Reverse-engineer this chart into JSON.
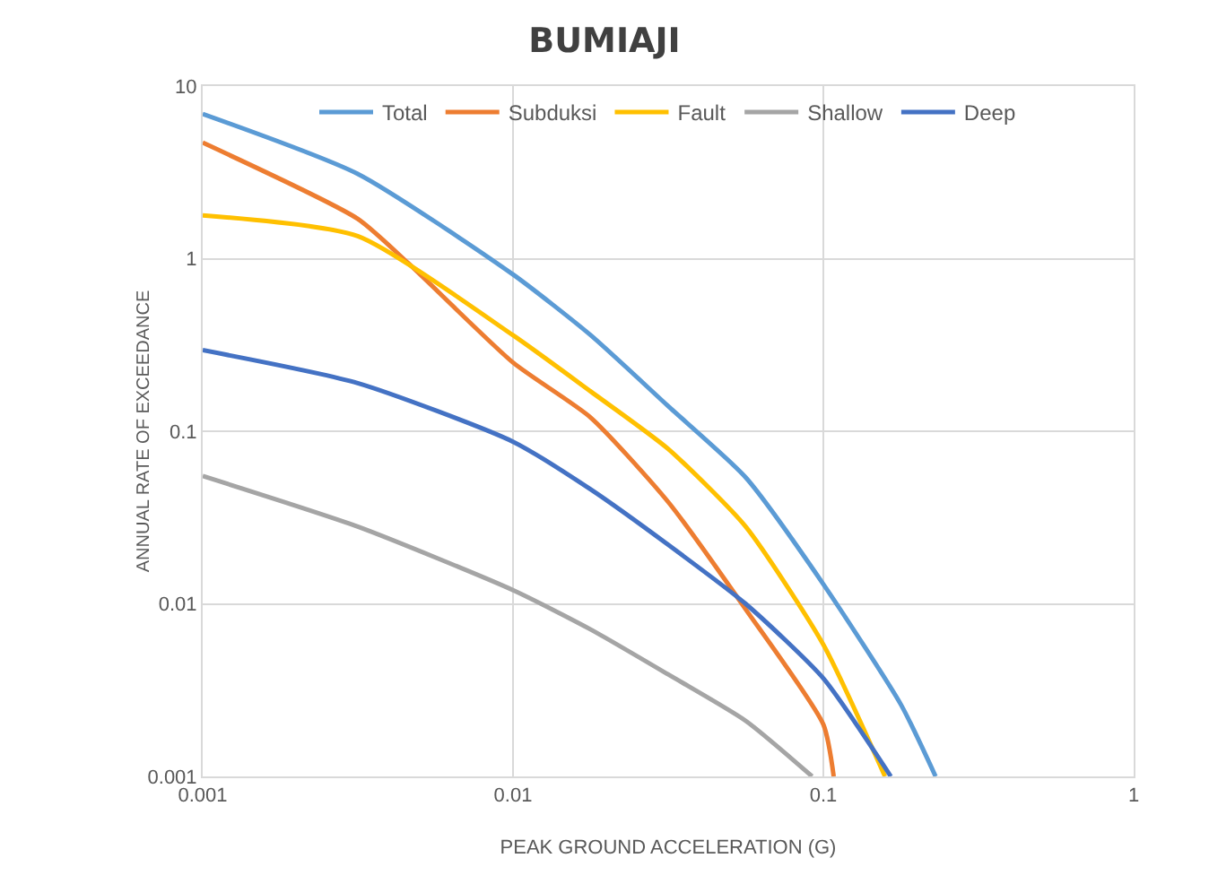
{
  "chart_data": {
    "type": "line",
    "title": "BUMIAJI",
    "xlabel": "PEAK GROUND ACCELERATION (G)",
    "ylabel": "ANNUAL RATE OF EXCEEDANCE",
    "log": "xy",
    "grid": true,
    "legend": "top",
    "line_style": "solid",
    "marker": "none",
    "xlim": [
      0.001,
      1
    ],
    "xticks": [
      0.001,
      0.01,
      0.1,
      1
    ],
    "ylim": [
      0.001,
      10
    ],
    "yticks": [
      0.001,
      0.01,
      0.1,
      1,
      10
    ],
    "series": [
      {
        "name": "Total",
        "color": "#5b9bd5",
        "x": [
          0.001,
          0.00316,
          0.01,
          0.0178,
          0.0316,
          0.0562,
          0.1,
          0.178,
          0.23
        ],
        "values": [
          6.9,
          3.1,
          0.81,
          0.36,
          0.14,
          0.054,
          0.013,
          0.0026,
          0.001
        ]
      },
      {
        "name": "Subduksi",
        "color": "#ed7d31",
        "x": [
          0.001,
          0.00316,
          0.0046,
          0.01,
          0.0178,
          0.0316,
          0.0562,
          0.1,
          0.108
        ],
        "values": [
          4.7,
          1.7,
          0.94,
          0.25,
          0.12,
          0.039,
          0.0093,
          0.002,
          0.001
        ]
      },
      {
        "name": "Fault",
        "color": "#ffc000",
        "x": [
          0.001,
          0.00316,
          0.01,
          0.0178,
          0.0316,
          0.0562,
          0.1,
          0.158
        ],
        "values": [
          1.78,
          1.35,
          0.36,
          0.17,
          0.079,
          0.028,
          0.0058,
          0.001
        ]
      },
      {
        "name": "Shallow",
        "color": "#a5a5a5",
        "x": [
          0.001,
          0.00316,
          0.01,
          0.0178,
          0.0316,
          0.0562,
          0.092
        ],
        "values": [
          0.055,
          0.028,
          0.012,
          0.0071,
          0.0039,
          0.0021,
          0.001
        ]
      },
      {
        "name": "Deep",
        "color": "#4472c4",
        "x": [
          0.001,
          0.00316,
          0.01,
          0.0178,
          0.0316,
          0.0562,
          0.1,
          0.165
        ],
        "values": [
          0.295,
          0.19,
          0.087,
          0.046,
          0.022,
          0.01,
          0.0037,
          0.001
        ]
      }
    ]
  }
}
